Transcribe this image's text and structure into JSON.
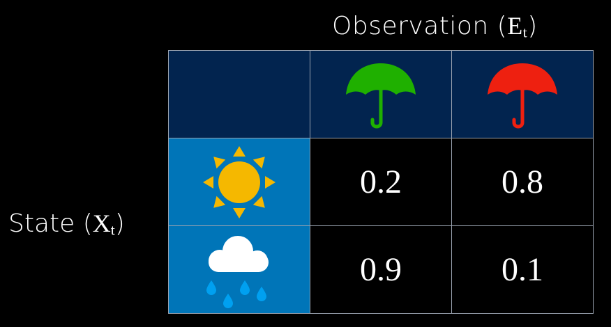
{
  "column_header": {
    "label": "Observation",
    "symbol": "E",
    "subscript": "t"
  },
  "row_header": {
    "label": "State",
    "symbol": "X",
    "subscript": "t"
  },
  "columns": [
    {
      "icon": "umbrella-icon",
      "color": "#1fb000"
    },
    {
      "icon": "umbrella-icon",
      "color": "#ee2010"
    }
  ],
  "rows": [
    {
      "icon": "sun-icon",
      "color": "#f5b800",
      "values": [
        "0.2",
        "0.8"
      ]
    },
    {
      "icon": "rain-cloud-icon",
      "color": "#ffffff",
      "values": [
        "0.9",
        "0.1"
      ]
    }
  ],
  "colors": {
    "header_bg": "#02244f",
    "state_bg": "#0075b8",
    "raindrop": "#00a0f0"
  }
}
